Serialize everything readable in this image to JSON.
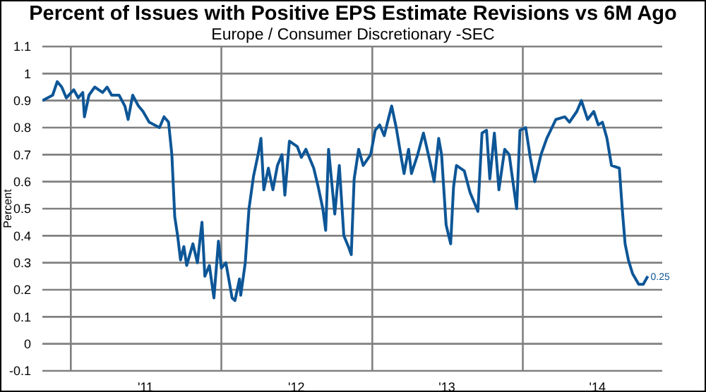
{
  "chart_data": {
    "type": "line",
    "title": "Percent of Issues with Positive EPS Estimate Revisions vs 6M Ago",
    "subtitle": "Europe / Consumer Discretionary -SEC",
    "ylabel": "Percent",
    "x": [
      "2010-10-24",
      "2010-11-18",
      "2010-11-29",
      "2010-12-10",
      "2010-12-21",
      "2011-01-08",
      "2011-01-19",
      "2011-01-30",
      "2011-02-03",
      "2011-02-14",
      "2011-02-28",
      "2011-03-19",
      "2011-03-30",
      "2011-04-10",
      "2011-04-28",
      "2011-05-12",
      "2011-05-20",
      "2011-05-31",
      "2011-06-14",
      "2011-06-25",
      "2011-07-10",
      "2011-08-04",
      "2011-08-15",
      "2011-08-26",
      "2011-09-03",
      "2011-09-10",
      "2011-09-17",
      "2011-09-24",
      "2011-10-02",
      "2011-10-09",
      "2011-10-24",
      "2011-11-04",
      "2011-11-15",
      "2011-11-22",
      "2011-12-03",
      "2011-12-14",
      "2011-12-25",
      "2012-01-01",
      "2012-01-12",
      "2012-01-27",
      "2012-02-03",
      "2012-02-14",
      "2012-02-17",
      "2012-02-28",
      "2012-03-08",
      "2012-03-19",
      "2012-03-30",
      "2012-04-06",
      "2012-04-13",
      "2012-04-24",
      "2012-05-05",
      "2012-05-16",
      "2012-05-27",
      "2012-06-03",
      "2012-06-14",
      "2012-07-03",
      "2012-07-13",
      "2012-07-24",
      "2012-08-12",
      "2012-08-23",
      "2012-09-03",
      "2012-09-10",
      "2012-09-17",
      "2012-10-02",
      "2012-10-13",
      "2012-10-24",
      "2012-11-04",
      "2012-11-11",
      "2012-11-18",
      "2012-11-29",
      "2012-12-10",
      "2012-12-28",
      "2013-01-08",
      "2013-01-19",
      "2013-01-30",
      "2013-02-07",
      "2013-02-17",
      "2013-02-28",
      "2013-03-11",
      "2013-03-19",
      "2013-03-30",
      "2013-04-06",
      "2013-04-21",
      "2013-05-05",
      "2013-05-20",
      "2013-05-31",
      "2013-06-11",
      "2013-06-18",
      "2013-06-29",
      "2013-07-10",
      "2013-07-17",
      "2013-07-24",
      "2013-08-12",
      "2013-08-26",
      "2013-09-14",
      "2013-09-24",
      "2013-10-05",
      "2013-10-13",
      "2013-10-24",
      "2013-11-04",
      "2013-11-18",
      "2013-11-29",
      "2013-12-17",
      "2013-12-25",
      "2014-01-08",
      "2014-01-19",
      "2014-01-30",
      "2014-02-14",
      "2014-02-28",
      "2014-03-22",
      "2014-04-13",
      "2014-04-24",
      "2014-05-12",
      "2014-05-23",
      "2014-06-07",
      "2014-06-22",
      "2014-07-03",
      "2014-07-13",
      "2014-07-24",
      "2014-08-04",
      "2014-08-23",
      "2014-08-30",
      "2014-09-06",
      "2014-09-14",
      "2014-09-24",
      "2014-10-09",
      "2014-10-20",
      "2014-10-31"
    ],
    "series": [
      {
        "color": "#0d5697",
        "values": [
          0.9,
          0.92,
          0.97,
          0.95,
          0.91,
          0.94,
          0.91,
          0.93,
          0.84,
          0.92,
          0.95,
          0.93,
          0.95,
          0.92,
          0.92,
          0.88,
          0.83,
          0.92,
          0.88,
          0.86,
          0.82,
          0.8,
          0.84,
          0.82,
          0.7,
          0.47,
          0.4,
          0.31,
          0.36,
          0.29,
          0.37,
          0.3,
          0.45,
          0.25,
          0.29,
          0.17,
          0.38,
          0.28,
          0.3,
          0.17,
          0.16,
          0.24,
          0.18,
          0.3,
          0.5,
          0.62,
          0.7,
          0.76,
          0.57,
          0.65,
          0.57,
          0.66,
          0.7,
          0.55,
          0.75,
          0.73,
          0.69,
          0.72,
          0.65,
          0.58,
          0.5,
          0.42,
          0.72,
          0.48,
          0.66,
          0.4,
          0.36,
          0.33,
          0.61,
          0.72,
          0.66,
          0.7,
          0.79,
          0.81,
          0.77,
          0.82,
          0.88,
          0.8,
          0.7,
          0.63,
          0.72,
          0.63,
          0.7,
          0.78,
          0.68,
          0.6,
          0.76,
          0.7,
          0.44,
          0.37,
          0.58,
          0.66,
          0.64,
          0.56,
          0.49,
          0.78,
          0.79,
          0.61,
          0.78,
          0.57,
          0.72,
          0.7,
          0.5,
          0.79,
          0.8,
          0.69,
          0.6,
          0.7,
          0.76,
          0.83,
          0.84,
          0.82,
          0.86,
          0.9,
          0.83,
          0.86,
          0.81,
          0.82,
          0.76,
          0.66,
          0.65,
          0.5,
          0.37,
          0.31,
          0.26,
          0.22,
          0.22,
          0.25
        ]
      }
    ],
    "xlim": [
      "2010-10-24",
      "2014-12-05"
    ],
    "xticks": [
      {
        "value": "2011-01-01",
        "label": null
      },
      {
        "value": "2011-07-01",
        "label": "'11"
      },
      {
        "value": "2012-01-01",
        "label": null
      },
      {
        "value": "2012-07-01",
        "label": "'12"
      },
      {
        "value": "2013-01-01",
        "label": null
      },
      {
        "value": "2013-07-01",
        "label": "'13"
      },
      {
        "value": "2014-01-01",
        "label": null
      },
      {
        "value": "2014-07-01",
        "label": "'14"
      }
    ],
    "ylim": [
      -0.1,
      1.1
    ],
    "yticks": [
      -0.1,
      0,
      0.1,
      0.2,
      0.3,
      0.4,
      0.5,
      0.6,
      0.7,
      0.8,
      0.9,
      1,
      1.1
    ],
    "grid": true,
    "marker": "none",
    "line_style": "solid",
    "annotations": [
      {
        "text": "0.25",
        "x": "2014-10-31",
        "y": 0.25
      }
    ]
  }
}
